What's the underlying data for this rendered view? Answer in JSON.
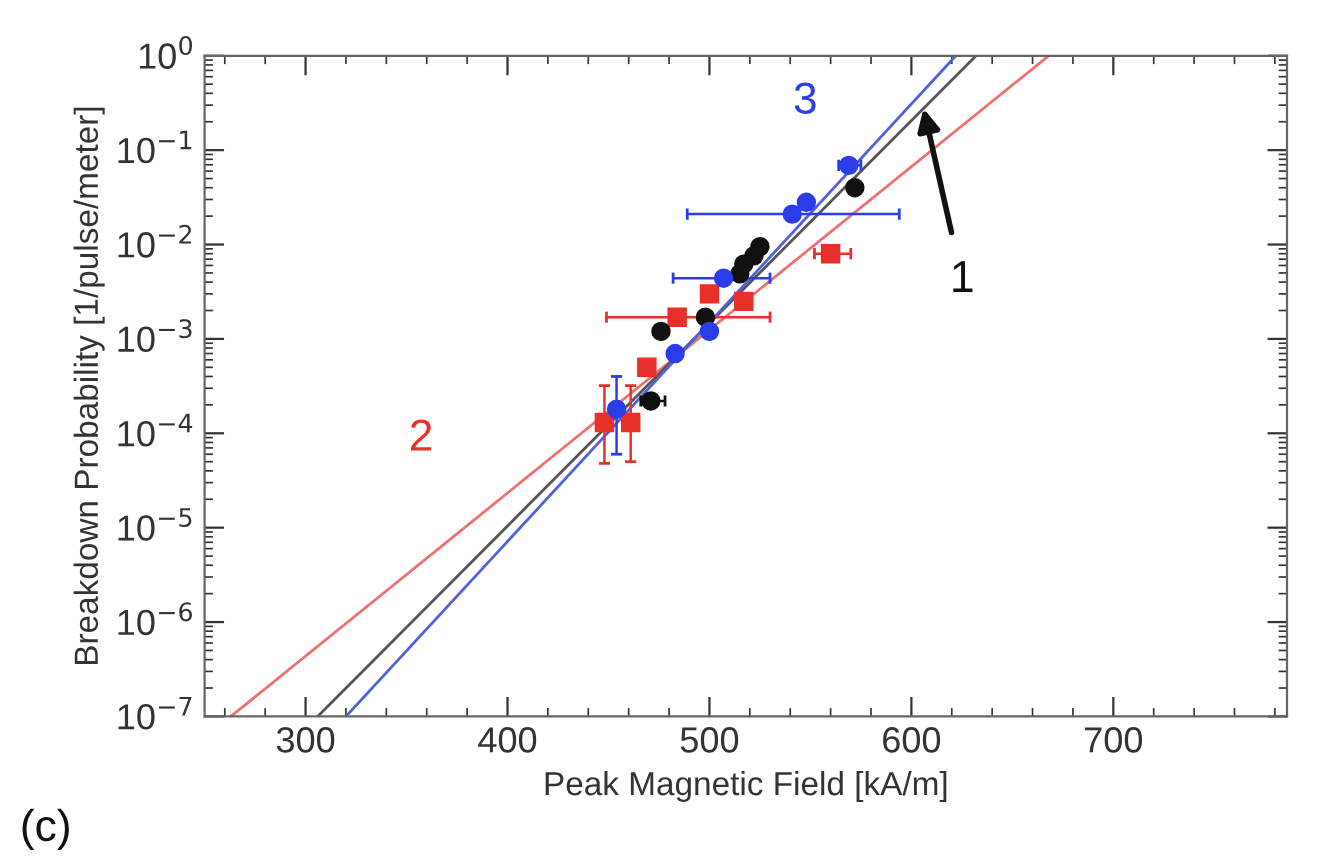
{
  "chart_data": {
    "type": "scatter",
    "xlabel": "Peak Magnetic Field [kA/m]",
    "ylabel": "Breakdown Probability [1/pulse/meter]",
    "log": "y",
    "grid": false,
    "xlim": [
      250,
      786
    ],
    "ylim": [
      1e-07,
      1
    ],
    "xticks": [
      300,
      400,
      500,
      600,
      700
    ],
    "yticks": [
      {
        "value": 1e-07,
        "label": "10$^{−7}$"
      },
      {
        "value": 1e-06,
        "label": "10$^{−6}$"
      },
      {
        "value": 1e-05,
        "label": "10$^{−5}$"
      },
      {
        "value": 0.0001,
        "label": "10$^{−4}$"
      },
      {
        "value": 0.001,
        "label": "10$^{−3}$"
      },
      {
        "value": 0.01,
        "label": "10$^{−2}$"
      },
      {
        "value": 0.1,
        "label": "10$^{−1}$"
      },
      {
        "value": 1,
        "label": "10$^{0}$"
      }
    ],
    "series": [
      {
        "type": "line",
        "marker": "none",
        "color": "#f07070",
        "x": [
          263,
          668
        ],
        "values": [
          1e-07,
          1
        ]
      },
      {
        "type": "line",
        "marker": "none",
        "color": "#555555",
        "x": [
          306,
          632
        ],
        "values": [
          1e-07,
          1
        ]
      },
      {
        "type": "line",
        "marker": "none",
        "color": "#5060e0",
        "x": [
          320,
          622
        ],
        "values": [
          1e-07,
          1
        ]
      },
      {
        "color": "#e8302a",
        "marker": "square",
        "x": [
          560,
          500,
          517,
          484,
          469,
          448,
          461
        ],
        "values": [
          0.008,
          0.003,
          0.0025,
          0.0017,
          0.0005,
          0.00013,
          0.00013
        ],
        "xerrors": [
          [
            552,
            570
          ],
          null,
          null,
          [
            449,
            530
          ],
          null,
          null,
          null
        ],
        "errors": [
          null,
          null,
          null,
          null,
          null,
          [
            4.8e-05,
            0.00032
          ],
          [
            5e-05,
            0.00032
          ]
        ]
      },
      {
        "color": "#111111",
        "marker": "circle",
        "x": [
          572,
          525,
          522,
          517,
          515,
          498,
          476,
          471
        ],
        "values": [
          0.04,
          0.0095,
          0.0076,
          0.0062,
          0.0049,
          0.0017,
          0.0012,
          0.00022
        ],
        "xerrors": [
          null,
          null,
          null,
          null,
          null,
          null,
          null,
          [
            466,
            478
          ]
        ]
      },
      {
        "color": "#2a3de8",
        "marker": "circle",
        "x": [
          569,
          548,
          541,
          507,
          500,
          483,
          454
        ],
        "values": [
          0.069,
          0.028,
          0.021,
          0.0044,
          0.0012,
          0.0007,
          0.00018
        ],
        "xerrors": [
          [
            564,
            575
          ],
          null,
          [
            489,
            594
          ],
          [
            482,
            530
          ],
          null,
          null,
          null
        ],
        "errors": [
          null,
          null,
          null,
          null,
          null,
          null,
          [
            6e-05,
            0.0004
          ]
        ]
      }
    ],
    "annotations": [
      "3",
      "2",
      {
        "text": "1",
        "x": 606,
        "y": 0.277
      },
      "(c)"
    ]
  }
}
